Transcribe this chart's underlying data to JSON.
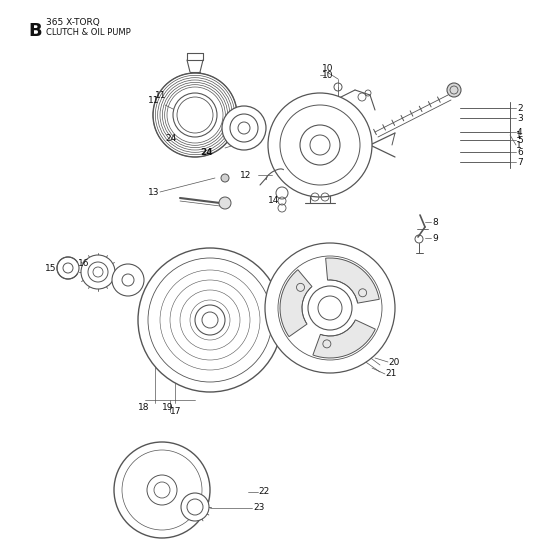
{
  "title_letter": "B",
  "title_line1": "365 X-TORQ",
  "title_line2": "CLUTCH & OIL PUMP",
  "bg_color": "#ffffff",
  "line_color": "#555555",
  "text_color": "#111111"
}
